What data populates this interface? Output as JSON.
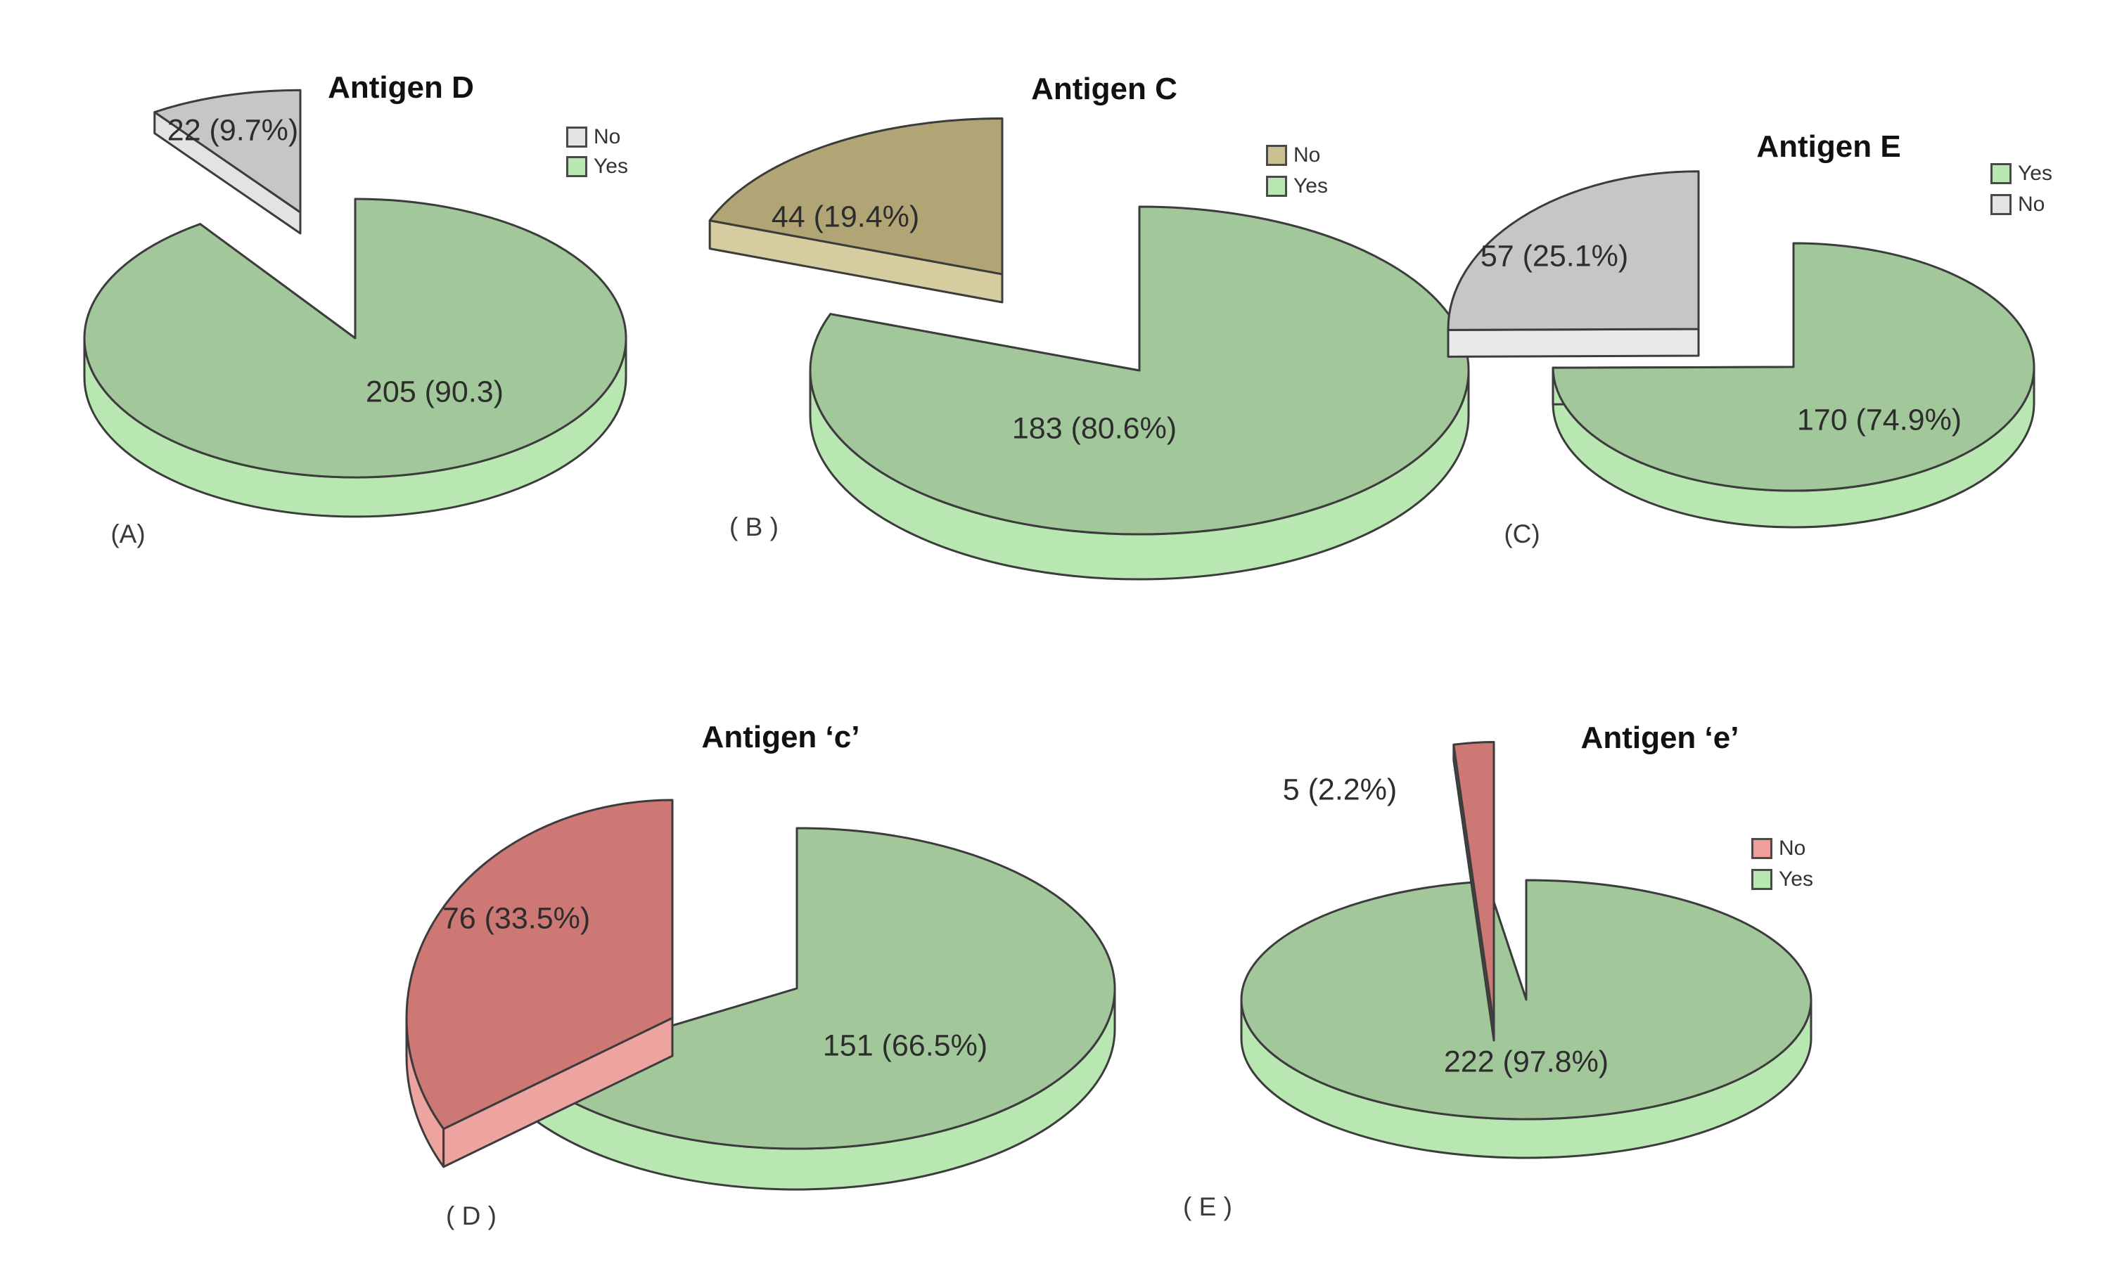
{
  "figure": {
    "background": "#ffffff",
    "outline_color": "#3c3c3c",
    "text_color": "#2d2d2d"
  },
  "chart_data": [
    {
      "type": "pie",
      "title": "Antigen D",
      "panel_label": "(A)",
      "categories": [
        "No",
        "Yes"
      ],
      "values": [
        22,
        205
      ],
      "percents": [
        9.7,
        90.3
      ],
      "slice_labels": [
        "22 (9.7%)",
        "205 (90.3)"
      ],
      "legend": {
        "position": "right",
        "items": [
          {
            "label": "No",
            "color": "#e3e3e3"
          },
          {
            "label": "Yes",
            "color": "#b9e7b2"
          }
        ]
      },
      "colors": {
        "no_top": "#c6c6c6",
        "no_side": "#e3e3e3",
        "yes_top": "#a2c79b",
        "yes_side": "#b9e7b2"
      }
    },
    {
      "type": "pie",
      "title": "Antigen C",
      "panel_label": "( B )",
      "categories": [
        "No",
        "Yes"
      ],
      "values": [
        44,
        183
      ],
      "percents": [
        19.4,
        80.6
      ],
      "slice_labels": [
        "44 (19.4%)",
        "183 (80.6%)"
      ],
      "legend": {
        "position": "right",
        "items": [
          {
            "label": "No",
            "color": "#cbc08f"
          },
          {
            "label": "Yes",
            "color": "#b9e7b2"
          }
        ]
      },
      "colors": {
        "no_top": "#b1a576",
        "no_side": "#d5cda0",
        "yes_top": "#a2c79b",
        "yes_side": "#b9e7b2"
      }
    },
    {
      "type": "pie",
      "title": "Antigen E",
      "panel_label": "(C)",
      "categories": [
        "No",
        "Yes"
      ],
      "values": [
        57,
        170
      ],
      "percents": [
        25.1,
        74.9
      ],
      "slice_labels": [
        "57 (25.1%)",
        "170 (74.9%)"
      ],
      "legend": {
        "position": "right",
        "items": [
          {
            "label": "Yes",
            "color": "#b9e7b2"
          },
          {
            "label": "No",
            "color": "#e3e3e3"
          }
        ]
      },
      "colors": {
        "no_top": "#c6c6c6",
        "no_side": "#e9e9e9",
        "yes_top": "#a2c79b",
        "yes_side": "#b9e7b2"
      }
    },
    {
      "type": "pie",
      "title": "Antigen ‘c’",
      "panel_label": "( D )",
      "categories": [
        "No",
        "Yes"
      ],
      "values": [
        76,
        151
      ],
      "percents": [
        33.5,
        66.5
      ],
      "slice_labels": [
        "76 (33.5%)",
        "151 (66.5%)"
      ],
      "legend": {
        "position": "none",
        "items": []
      },
      "colors": {
        "no_top": "#cd7874",
        "no_side": "#eda4a1",
        "yes_top": "#a2c79b",
        "yes_side": "#b9e7b2"
      }
    },
    {
      "type": "pie",
      "title": "Antigen ‘e’",
      "panel_label": "( E )",
      "categories": [
        "No",
        "Yes"
      ],
      "values": [
        5,
        222
      ],
      "percents": [
        2.2,
        97.8
      ],
      "slice_labels": [
        "5 (2.2%)",
        "222 (97.8%)"
      ],
      "legend": {
        "position": "right",
        "items": [
          {
            "label": "No",
            "color": "#ef9e9b"
          },
          {
            "label": "Yes",
            "color": "#b9e7b2"
          }
        ]
      },
      "colors": {
        "no_top": "#cd7874",
        "no_side": "#eda4a1",
        "yes_top": "#a2c79b",
        "yes_side": "#b9e7b2"
      }
    }
  ]
}
